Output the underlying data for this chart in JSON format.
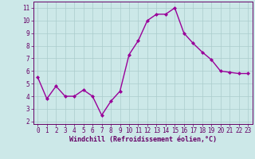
{
  "x": [
    0,
    1,
    2,
    3,
    4,
    5,
    6,
    7,
    8,
    9,
    10,
    11,
    12,
    13,
    14,
    15,
    16,
    17,
    18,
    19,
    20,
    21,
    22,
    23
  ],
  "y": [
    5.5,
    3.8,
    4.8,
    4.0,
    4.0,
    4.5,
    4.0,
    2.5,
    3.6,
    4.4,
    7.3,
    8.4,
    10.0,
    10.5,
    10.5,
    11.0,
    9.0,
    8.2,
    7.5,
    6.9,
    6.0,
    5.9,
    5.8,
    5.8
  ],
  "line_color": "#990099",
  "marker": "D",
  "markersize": 2.0,
  "linewidth": 1.0,
  "bg_color": "#cce8e8",
  "grid_color": "#aacccc",
  "xlabel": "Windchill (Refroidissement éolien,°C)",
  "xlabel_fontsize": 6.0,
  "xlim": [
    -0.5,
    23.5
  ],
  "ylim": [
    1.8,
    11.5
  ],
  "yticks": [
    2,
    3,
    4,
    5,
    6,
    7,
    8,
    9,
    10,
    11
  ],
  "xticks": [
    0,
    1,
    2,
    3,
    4,
    5,
    6,
    7,
    8,
    9,
    10,
    11,
    12,
    13,
    14,
    15,
    16,
    17,
    18,
    19,
    20,
    21,
    22,
    23
  ],
  "tick_fontsize": 5.5,
  "axis_label_color": "#660066",
  "tick_color": "#660066",
  "spine_color": "#660066"
}
